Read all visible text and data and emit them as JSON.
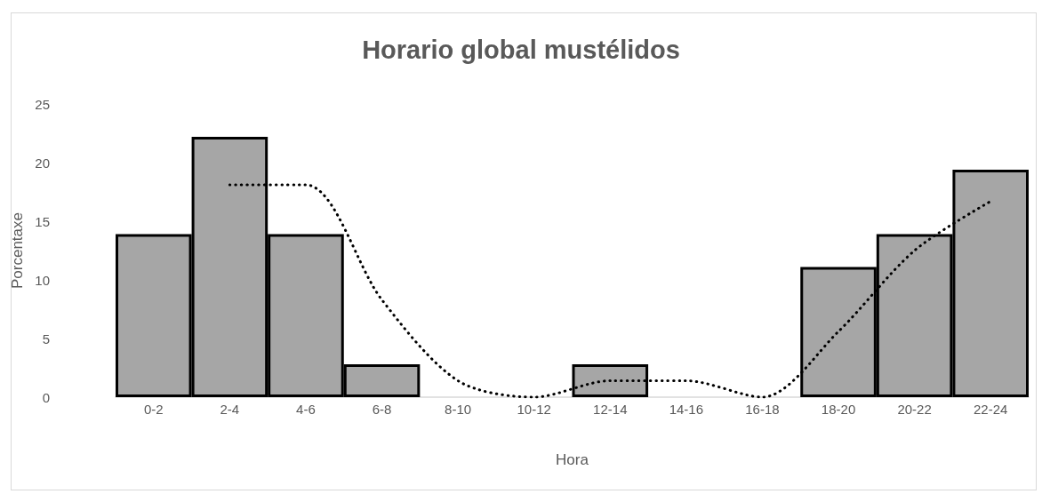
{
  "chart_data": {
    "type": "bar",
    "title": "Horario global mustélidos",
    "xlabel": "Hora",
    "ylabel": "Porcentaxe",
    "categories": [
      "0-2",
      "2-4",
      "4-6",
      "6-8",
      "8-10",
      "10-12",
      "12-14",
      "14-16",
      "16-18",
      "18-20",
      "20-22",
      "22-24"
    ],
    "series": [
      {
        "color": "#a6a6a6",
        "values": [
          13.9,
          22.2,
          13.9,
          2.8,
          0,
          0,
          2.8,
          0,
          0,
          11.1,
          13.9,
          19.4
        ]
      },
      {
        "type": "line",
        "color": "#000000",
        "values": [
          null,
          18.1,
          18.1,
          8.3,
          1.4,
          0,
          1.4,
          1.4,
          0,
          5.6,
          12.5,
          16.7
        ]
      }
    ],
    "ylim": [
      0,
      25
    ],
    "yticks": [
      0,
      5,
      10,
      15,
      20,
      25
    ],
    "line_style": "dotted"
  }
}
